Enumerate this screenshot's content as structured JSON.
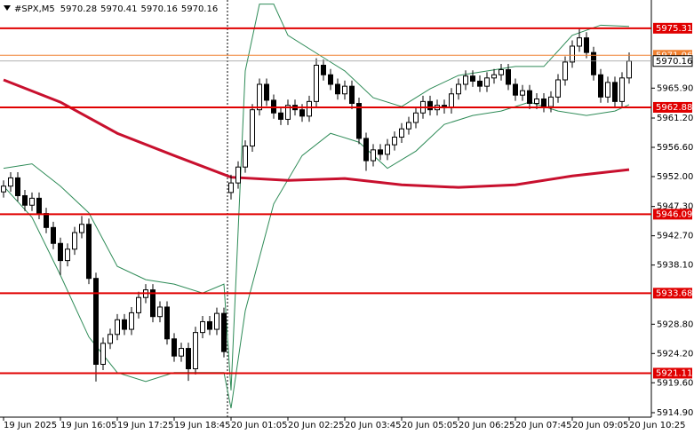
{
  "chart_data": {
    "type": "candlestick",
    "title": "#SPX,M5",
    "header_values": [
      5970.28,
      5970.41,
      5970.16,
      5970.16
    ],
    "categories": [
      "19 Jun 2025",
      null,
      null,
      null,
      null,
      null,
      null,
      null,
      "19 Jun 16:05",
      null,
      null,
      null,
      null,
      null,
      null,
      null,
      "19 Jun 17:25",
      null,
      null,
      null,
      null,
      null,
      null,
      null,
      "19 Jun 18:45",
      null,
      null,
      null,
      null,
      null,
      null,
      null,
      "20 Jun 01:05",
      null,
      null,
      null,
      null,
      null,
      null,
      null,
      "20 Jun 02:25",
      null,
      null,
      null,
      null,
      null,
      null,
      null,
      "20 Jun 03:45",
      null,
      null,
      null,
      null,
      null,
      null,
      null,
      "20 Jun 05:05",
      null,
      null,
      null,
      null,
      null,
      null,
      null,
      "20 Jun 06:25",
      null,
      null,
      null,
      null,
      null,
      null,
      null,
      "20 Jun 07:45",
      null,
      null,
      null,
      null,
      null,
      null,
      null,
      "20 Jun 09:05",
      null,
      null,
      null,
      null,
      null,
      null,
      null,
      "20 Jun 10:25"
    ],
    "candles": [
      [
        5949.6,
        5951.4,
        5948.7,
        5950.5
      ],
      [
        5950.5,
        5952.7,
        5949.6,
        5951.8
      ],
      [
        5951.8,
        5952.7,
        5948.1,
        5949.0
      ],
      [
        5949.0,
        5949.9,
        5946.6,
        5947.5
      ],
      [
        5947.5,
        5949.5,
        5946.6,
        5948.6
      ],
      [
        5948.6,
        5949.5,
        5945.3,
        5946.2
      ],
      [
        5946.2,
        5947.1,
        5943.1,
        5944.0
      ],
      [
        5944.0,
        5944.9,
        5940.6,
        5941.5
      ],
      [
        5941.5,
        5942.4,
        5936.5,
        5938.8
      ],
      [
        5938.8,
        5941.5,
        5937.9,
        5940.6
      ],
      [
        5940.6,
        5944.1,
        5939.7,
        5943.2
      ],
      [
        5943.2,
        5945.8,
        5942.3,
        5944.5
      ],
      [
        5944.5,
        5945.4,
        5935.1,
        5936.0
      ],
      [
        5936.0,
        5936.9,
        5919.8,
        5922.5
      ],
      [
        5922.5,
        5926.7,
        5921.6,
        5925.8
      ],
      [
        5925.8,
        5928.1,
        5924.9,
        5927.2
      ],
      [
        5927.2,
        5930.4,
        5926.3,
        5929.5
      ],
      [
        5929.5,
        5930.4,
        5927.1,
        5928.0
      ],
      [
        5928.0,
        5931.5,
        5927.1,
        5930.6
      ],
      [
        5930.6,
        5933.9,
        5929.7,
        5933.0
      ],
      [
        5933.0,
        5935.1,
        5932.1,
        5934.2
      ],
      [
        5934.2,
        5935.1,
        5929.1,
        5930.0
      ],
      [
        5930.0,
        5932.4,
        5929.1,
        5931.5
      ],
      [
        5931.5,
        5932.4,
        5925.6,
        5926.5
      ],
      [
        5926.5,
        5927.4,
        5922.9,
        5923.8
      ],
      [
        5923.8,
        5925.9,
        5922.9,
        5925.0
      ],
      [
        5925.0,
        5925.9,
        5919.9,
        5921.8
      ],
      [
        5921.8,
        5928.4,
        5920.9,
        5927.5
      ],
      [
        5927.5,
        5930.1,
        5926.6,
        5929.2
      ],
      [
        5929.2,
        5930.1,
        5927.1,
        5928.0
      ],
      [
        5928.0,
        5931.4,
        5927.1,
        5930.5
      ],
      [
        5930.5,
        5931.4,
        5923.6,
        5924.5
      ],
      [
        5949.5,
        5952.3,
        5948.4,
        5951.0
      ],
      [
        5951.0,
        5954.4,
        5950.1,
        5953.5
      ],
      [
        5953.5,
        5957.7,
        5952.6,
        5956.8
      ],
      [
        5956.8,
        5963.4,
        5955.9,
        5962.5
      ],
      [
        5962.5,
        5967.4,
        5961.6,
        5966.5
      ],
      [
        5966.5,
        5967.4,
        5963.1,
        5964.0
      ],
      [
        5964.0,
        5964.9,
        5961.1,
        5962.0
      ],
      [
        5962.0,
        5962.9,
        5960.1,
        5961.0
      ],
      [
        5961.0,
        5964.1,
        5960.1,
        5963.2
      ],
      [
        5963.2,
        5964.1,
        5961.6,
        5962.5
      ],
      [
        5962.5,
        5963.4,
        5960.6,
        5961.5
      ],
      [
        5961.5,
        5964.7,
        5960.6,
        5963.8
      ],
      [
        5963.8,
        5970.6,
        5962.9,
        5969.5
      ],
      [
        5969.5,
        5970.4,
        5967.1,
        5968.0
      ],
      [
        5968.0,
        5968.9,
        5965.6,
        5966.5
      ],
      [
        5966.5,
        5967.4,
        5964.1,
        5965.0
      ],
      [
        5965.0,
        5967.1,
        5964.1,
        5966.2
      ],
      [
        5966.2,
        5967.1,
        5962.6,
        5963.5
      ],
      [
        5963.5,
        5964.4,
        5957.1,
        5958.0
      ],
      [
        5958.0,
        5958.9,
        5952.9,
        5954.5
      ],
      [
        5954.5,
        5957.1,
        5953.6,
        5956.2
      ],
      [
        5956.2,
        5957.1,
        5954.6,
        5955.5
      ],
      [
        5955.5,
        5957.9,
        5954.6,
        5957.0
      ],
      [
        5957.0,
        5959.1,
        5956.1,
        5958.2
      ],
      [
        5958.2,
        5960.4,
        5957.3,
        5959.5
      ],
      [
        5959.5,
        5961.4,
        5958.6,
        5960.5
      ],
      [
        5960.5,
        5962.9,
        5959.6,
        5962.0
      ],
      [
        5962.0,
        5964.7,
        5961.1,
        5963.8
      ],
      [
        5963.8,
        5964.7,
        5961.6,
        5962.5
      ],
      [
        5962.5,
        5964.1,
        5961.6,
        5963.2
      ],
      [
        5963.2,
        5964.1,
        5961.9,
        5962.8
      ],
      [
        5962.8,
        5965.9,
        5961.9,
        5965.0
      ],
      [
        5965.0,
        5967.4,
        5964.1,
        5966.5
      ],
      [
        5966.5,
        5968.7,
        5965.6,
        5967.8
      ],
      [
        5967.8,
        5968.7,
        5966.1,
        5967.0
      ],
      [
        5967.0,
        5967.9,
        5965.3,
        5966.2
      ],
      [
        5966.2,
        5968.4,
        5965.3,
        5967.5
      ],
      [
        5967.5,
        5968.9,
        5966.6,
        5968.0
      ],
      [
        5968.0,
        5969.7,
        5967.1,
        5968.8
      ],
      [
        5968.8,
        5969.7,
        5965.6,
        5966.5
      ],
      [
        5966.5,
        5967.4,
        5963.9,
        5964.8
      ],
      [
        5964.8,
        5966.4,
        5963.9,
        5965.5
      ],
      [
        5965.5,
        5966.4,
        5962.6,
        5963.5
      ],
      [
        5963.5,
        5965.1,
        5962.6,
        5964.2
      ],
      [
        5964.2,
        5965.1,
        5962.1,
        5963.0
      ],
      [
        5963.0,
        5965.4,
        5962.1,
        5964.5
      ],
      [
        5964.5,
        5968.1,
        5963.6,
        5967.2
      ],
      [
        5967.2,
        5970.9,
        5966.3,
        5970.0
      ],
      [
        5970.0,
        5973.4,
        5969.1,
        5972.5
      ],
      [
        5972.5,
        5975.2,
        5971.6,
        5973.8
      ],
      [
        5973.8,
        5974.7,
        5970.6,
        5971.5
      ],
      [
        5971.5,
        5972.4,
        5967.1,
        5968.0
      ],
      [
        5968.0,
        5968.9,
        5963.6,
        5964.5
      ],
      [
        5964.5,
        5967.7,
        5963.6,
        5966.8
      ],
      [
        5966.8,
        5967.7,
        5962.9,
        5963.8
      ],
      [
        5963.8,
        5968.4,
        5962.9,
        5967.5
      ],
      [
        5967.5,
        5971.5,
        5966.6,
        5970.16
      ]
    ],
    "candle_color": "#000000",
    "moving_average": {
      "color": "#c8102e",
      "x": [
        0,
        8,
        16,
        24,
        32,
        40,
        48,
        56,
        64,
        72,
        80,
        88
      ],
      "values": [
        5967.2,
        5963.7,
        5958.8,
        5955.3,
        5951.9,
        5951.4,
        5951.7,
        5950.7,
        5950.3,
        5950.7,
        5952.1,
        5953.1
      ]
    },
    "upper_band": {
      "color": "#2e8b57",
      "x": [
        0,
        4,
        8,
        12,
        16,
        20,
        24,
        28,
        31,
        32,
        34,
        36,
        38,
        40,
        44,
        48,
        52,
        56,
        60,
        64,
        68,
        72,
        76,
        80,
        84,
        88
      ],
      "values": [
        5953.3,
        5954.0,
        5950.5,
        5946.3,
        5937.9,
        5935.8,
        5935.1,
        5933.7,
        5935.1,
        5918.4,
        5968.6,
        5979.1,
        5979.1,
        5974.2,
        5971.4,
        5968.6,
        5964.4,
        5963.0,
        5965.8,
        5967.9,
        5968.6,
        5969.3,
        5969.3,
        5974.2,
        5975.8,
        5975.6
      ]
    },
    "lower_band": {
      "color": "#2e8b57",
      "x": [
        0,
        4,
        8,
        12,
        16,
        20,
        24,
        28,
        31,
        32,
        34,
        38,
        42,
        46,
        50,
        54,
        58,
        62,
        66,
        70,
        74,
        78,
        82,
        86,
        88
      ],
      "values": [
        5950.5,
        5945.6,
        5936.5,
        5926.8,
        5921.2,
        5919.8,
        5921.2,
        5921.2,
        5921.2,
        5915.6,
        5930.9,
        5947.7,
        5955.3,
        5958.8,
        5957.4,
        5953.3,
        5956.0,
        5960.2,
        5961.6,
        5962.3,
        5963.7,
        5962.3,
        5961.6,
        5962.3,
        5963.3
      ]
    },
    "levels": [
      {
        "value": 5975.31,
        "color": "#e00000"
      },
      {
        "value": 5962.88,
        "color": "#e00000"
      },
      {
        "value": 5946.09,
        "color": "#e00000"
      },
      {
        "value": 5933.68,
        "color": "#e00000"
      },
      {
        "value": 5921.11,
        "color": "#e00000"
      },
      {
        "value": 5971.06,
        "color": "#f08030"
      }
    ],
    "current_price": 5970.16,
    "ylim": [
      5914.2,
      5979.75
    ],
    "yticks": [
      {
        "value": 5914.9,
        "label": "5914.90"
      },
      {
        "value": 5919.6,
        "label": "5919.60"
      },
      {
        "value": 5924.2,
        "label": "5924.20"
      },
      {
        "value": 5928.8,
        "label": "5928.80"
      },
      {
        "value": 5938.1,
        "label": "5938.10"
      },
      {
        "value": 5942.7,
        "label": "5942.70"
      },
      {
        "value": 5947.3,
        "label": "5947.30"
      },
      {
        "value": 5952,
        "label": "5952.00"
      },
      {
        "value": 5956.6,
        "label": "5956.60"
      },
      {
        "value": 5961.2,
        "label": "5961.20"
      },
      {
        "value": 5965.9,
        "label": "5965.90"
      }
    ]
  }
}
